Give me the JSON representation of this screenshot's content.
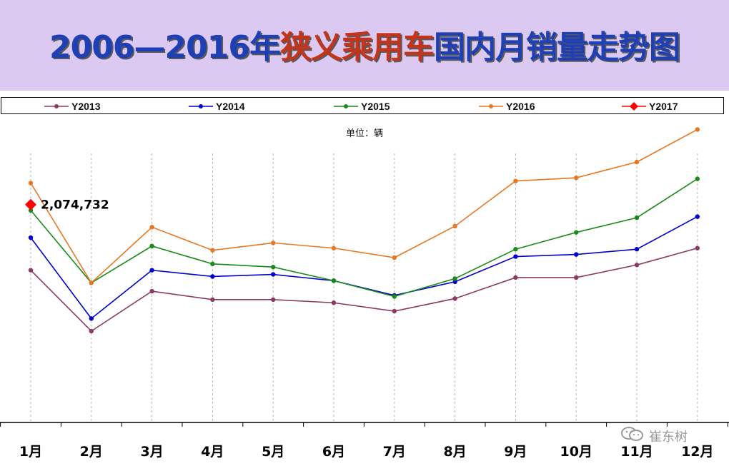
{
  "header": {
    "title_part1": "2006—2016年",
    "title_part2": "狭义乘用车",
    "title_part3": "国内月销量走势图"
  },
  "unit_label": "单位：辆",
  "watermark": "崔东树",
  "chart_data": {
    "type": "line",
    "title": "2006—2016年狭义乘用车国内月销量走势图",
    "xlabel": "",
    "ylabel": "",
    "unit": "单位：辆",
    "categories": [
      "1月",
      "2月",
      "3月",
      "4月",
      "5月",
      "6月",
      "7月",
      "8月",
      "9月",
      "10月",
      "11月",
      "12月"
    ],
    "ylim": [
      0,
      2800000
    ],
    "grid": "vertical dashed lines at each month",
    "legend_position": "top",
    "series": [
      {
        "name": "Y2013",
        "color": "#8b3a62",
        "marker": "circle",
        "values": [
          1450000,
          870000,
          1250000,
          1170000,
          1170000,
          1140000,
          1060000,
          1180000,
          1380000,
          1380000,
          1500000,
          1660000
        ]
      },
      {
        "name": "Y2014",
        "color": "#0000cc",
        "marker": "circle",
        "values": [
          1760000,
          990000,
          1450000,
          1390000,
          1410000,
          1350000,
          1210000,
          1340000,
          1580000,
          1600000,
          1650000,
          1960000
        ]
      },
      {
        "name": "Y2015",
        "color": "#1a8a1a",
        "marker": "circle",
        "values": [
          2020000,
          1330000,
          1680000,
          1510000,
          1480000,
          1350000,
          1200000,
          1370000,
          1650000,
          1810000,
          1950000,
          2320000
        ]
      },
      {
        "name": "Y2016",
        "color": "#e87722",
        "marker": "circle",
        "values": [
          2280000,
          1330000,
          1860000,
          1640000,
          1710000,
          1660000,
          1570000,
          1870000,
          2300000,
          2330000,
          2480000,
          2790000
        ]
      },
      {
        "name": "Y2017",
        "color": "#ff0000",
        "marker": "diamond",
        "values": [
          2074732,
          null,
          null,
          null,
          null,
          null,
          null,
          null,
          null,
          null,
          null,
          null
        ],
        "data_labels": [
          "2,074,732"
        ]
      }
    ]
  }
}
